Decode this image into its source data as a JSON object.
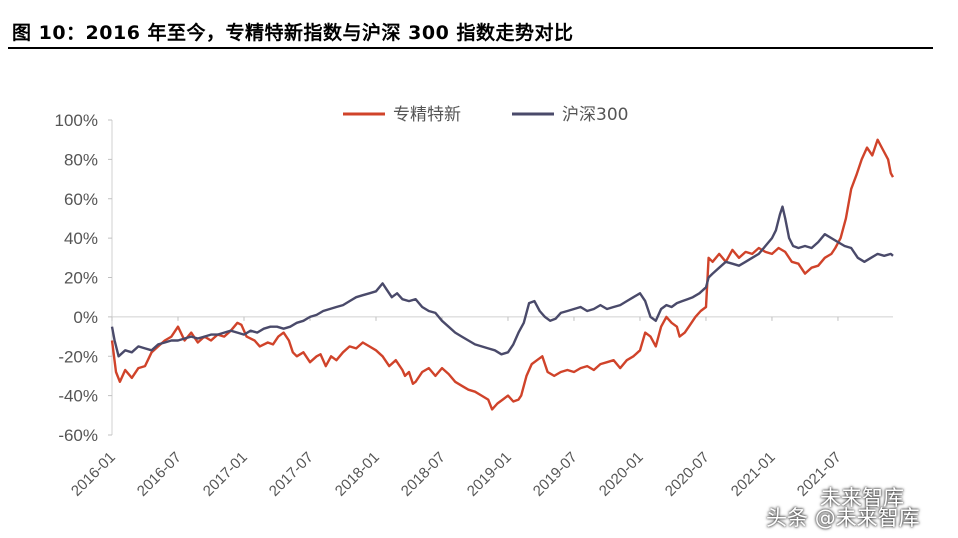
{
  "title": "图 10：2016 年至今，专精特新指数与沪深 300 指数走势对比",
  "watermark": {
    "wechat": "未来智库",
    "platform_prefix": "头条",
    "account": "@未来智库"
  },
  "chart_data": {
    "type": "line",
    "title": "",
    "xlabel": "",
    "ylabel": "",
    "ylim": [
      -60,
      100
    ],
    "y_ticks": [
      100,
      80,
      60,
      40,
      20,
      0,
      -20,
      -40,
      -60
    ],
    "y_tick_labels": [
      "100%",
      "80%",
      "60%",
      "40%",
      "20%",
      "0%",
      "-20%",
      "-40%",
      "-60%"
    ],
    "x_range": [
      2016.0,
      2021.917
    ],
    "x_ticks": [
      2016.0,
      2016.5,
      2017.0,
      2017.5,
      2018.0,
      2018.5,
      2019.0,
      2019.5,
      2020.0,
      2020.5,
      2021.0,
      2021.5
    ],
    "x_tick_labels": [
      "2016-01",
      "2016-07",
      "2017-01",
      "2017-07",
      "2018-01",
      "2018-07",
      "2019-01",
      "2019-07",
      "2020-01",
      "2020-07",
      "2021-01",
      "2021-07"
    ],
    "legend_position": "top-center",
    "series": [
      {
        "name": "专精特新",
        "color": "#d0432a",
        "points": [
          [
            2016.0,
            -12
          ],
          [
            2016.03,
            -28
          ],
          [
            2016.06,
            -33
          ],
          [
            2016.1,
            -27
          ],
          [
            2016.15,
            -31
          ],
          [
            2016.2,
            -26
          ],
          [
            2016.25,
            -25
          ],
          [
            2016.3,
            -18
          ],
          [
            2016.35,
            -15
          ],
          [
            2016.4,
            -12
          ],
          [
            2016.45,
            -10
          ],
          [
            2016.5,
            -5
          ],
          [
            2016.55,
            -12
          ],
          [
            2016.6,
            -8
          ],
          [
            2016.65,
            -13
          ],
          [
            2016.7,
            -10
          ],
          [
            2016.75,
            -12
          ],
          [
            2016.8,
            -9
          ],
          [
            2016.85,
            -10
          ],
          [
            2016.9,
            -7
          ],
          [
            2016.95,
            -3
          ],
          [
            2016.98,
            -4
          ],
          [
            2017.02,
            -10
          ],
          [
            2017.08,
            -12
          ],
          [
            2017.12,
            -15
          ],
          [
            2017.18,
            -13
          ],
          [
            2017.22,
            -14
          ],
          [
            2017.26,
            -10
          ],
          [
            2017.3,
            -8
          ],
          [
            2017.34,
            -12
          ],
          [
            2017.37,
            -18
          ],
          [
            2017.4,
            -20
          ],
          [
            2017.45,
            -18
          ],
          [
            2017.5,
            -23
          ],
          [
            2017.55,
            -20
          ],
          [
            2017.58,
            -19
          ],
          [
            2017.62,
            -25
          ],
          [
            2017.66,
            -20
          ],
          [
            2017.7,
            -22
          ],
          [
            2017.75,
            -18
          ],
          [
            2017.8,
            -15
          ],
          [
            2017.85,
            -16
          ],
          [
            2017.9,
            -13
          ],
          [
            2017.95,
            -15
          ],
          [
            2018.0,
            -17
          ],
          [
            2018.05,
            -20
          ],
          [
            2018.1,
            -25
          ],
          [
            2018.15,
            -22
          ],
          [
            2018.2,
            -27
          ],
          [
            2018.22,
            -30
          ],
          [
            2018.25,
            -28
          ],
          [
            2018.28,
            -34
          ],
          [
            2018.3,
            -33
          ],
          [
            2018.35,
            -28
          ],
          [
            2018.4,
            -26
          ],
          [
            2018.45,
            -30
          ],
          [
            2018.5,
            -26
          ],
          [
            2018.55,
            -29
          ],
          [
            2018.6,
            -33
          ],
          [
            2018.65,
            -35
          ],
          [
            2018.7,
            -37
          ],
          [
            2018.75,
            -38
          ],
          [
            2018.8,
            -40
          ],
          [
            2018.85,
            -42
          ],
          [
            2018.88,
            -47
          ],
          [
            2018.92,
            -44
          ],
          [
            2018.96,
            -42
          ],
          [
            2019.0,
            -40
          ],
          [
            2019.04,
            -43
          ],
          [
            2019.08,
            -42
          ],
          [
            2019.1,
            -40
          ],
          [
            2019.14,
            -30
          ],
          [
            2019.18,
            -24
          ],
          [
            2019.22,
            -22
          ],
          [
            2019.26,
            -20
          ],
          [
            2019.3,
            -28
          ],
          [
            2019.35,
            -30
          ],
          [
            2019.4,
            -28
          ],
          [
            2019.45,
            -27
          ],
          [
            2019.5,
            -28
          ],
          [
            2019.55,
            -26
          ],
          [
            2019.6,
            -25
          ],
          [
            2019.65,
            -27
          ],
          [
            2019.7,
            -24
          ],
          [
            2019.75,
            -23
          ],
          [
            2019.8,
            -22
          ],
          [
            2019.85,
            -26
          ],
          [
            2019.9,
            -22
          ],
          [
            2019.95,
            -20
          ],
          [
            2020.0,
            -17
          ],
          [
            2020.04,
            -8
          ],
          [
            2020.08,
            -10
          ],
          [
            2020.12,
            -15
          ],
          [
            2020.16,
            -5
          ],
          [
            2020.2,
            0
          ],
          [
            2020.24,
            -3
          ],
          [
            2020.28,
            -5
          ],
          [
            2020.3,
            -10
          ],
          [
            2020.34,
            -8
          ],
          [
            2020.38,
            -4
          ],
          [
            2020.42,
            0
          ],
          [
            2020.46,
            3
          ],
          [
            2020.5,
            5
          ],
          [
            2020.52,
            30
          ],
          [
            2020.55,
            28
          ],
          [
            2020.6,
            32
          ],
          [
            2020.65,
            28
          ],
          [
            2020.7,
            34
          ],
          [
            2020.75,
            30
          ],
          [
            2020.8,
            33
          ],
          [
            2020.85,
            32
          ],
          [
            2020.9,
            35
          ],
          [
            2020.95,
            33
          ],
          [
            2021.0,
            32
          ],
          [
            2021.05,
            35
          ],
          [
            2021.1,
            33
          ],
          [
            2021.15,
            28
          ],
          [
            2021.2,
            27
          ],
          [
            2021.25,
            22
          ],
          [
            2021.3,
            25
          ],
          [
            2021.35,
            26
          ],
          [
            2021.4,
            30
          ],
          [
            2021.45,
            32
          ],
          [
            2021.48,
            35
          ],
          [
            2021.52,
            40
          ],
          [
            2021.56,
            50
          ],
          [
            2021.6,
            65
          ],
          [
            2021.64,
            72
          ],
          [
            2021.68,
            80
          ],
          [
            2021.72,
            86
          ],
          [
            2021.76,
            82
          ],
          [
            2021.8,
            90
          ],
          [
            2021.84,
            85
          ],
          [
            2021.88,
            80
          ],
          [
            2021.9,
            73
          ],
          [
            2021.917,
            71
          ]
        ]
      },
      {
        "name": "沪深300",
        "color": "#4a4a6a",
        "points": [
          [
            2016.0,
            -5
          ],
          [
            2016.02,
            -12
          ],
          [
            2016.05,
            -20
          ],
          [
            2016.1,
            -17
          ],
          [
            2016.15,
            -18
          ],
          [
            2016.2,
            -15
          ],
          [
            2016.25,
            -16
          ],
          [
            2016.3,
            -17
          ],
          [
            2016.35,
            -14
          ],
          [
            2016.4,
            -13
          ],
          [
            2016.45,
            -12
          ],
          [
            2016.5,
            -12
          ],
          [
            2016.55,
            -11
          ],
          [
            2016.6,
            -10
          ],
          [
            2016.65,
            -11
          ],
          [
            2016.7,
            -10
          ],
          [
            2016.75,
            -9
          ],
          [
            2016.8,
            -9
          ],
          [
            2016.85,
            -8
          ],
          [
            2016.9,
            -7
          ],
          [
            2016.95,
            -8
          ],
          [
            2017.0,
            -9
          ],
          [
            2017.05,
            -7
          ],
          [
            2017.1,
            -8
          ],
          [
            2017.15,
            -6
          ],
          [
            2017.2,
            -5
          ],
          [
            2017.25,
            -5
          ],
          [
            2017.3,
            -6
          ],
          [
            2017.35,
            -5
          ],
          [
            2017.4,
            -3
          ],
          [
            2017.45,
            -2
          ],
          [
            2017.5,
            0
          ],
          [
            2017.55,
            1
          ],
          [
            2017.6,
            3
          ],
          [
            2017.65,
            4
          ],
          [
            2017.7,
            5
          ],
          [
            2017.75,
            6
          ],
          [
            2017.8,
            8
          ],
          [
            2017.85,
            10
          ],
          [
            2017.9,
            11
          ],
          [
            2017.95,
            12
          ],
          [
            2018.0,
            13
          ],
          [
            2018.05,
            17
          ],
          [
            2018.08,
            14
          ],
          [
            2018.12,
            10
          ],
          [
            2018.16,
            12
          ],
          [
            2018.2,
            9
          ],
          [
            2018.25,
            8
          ],
          [
            2018.3,
            9
          ],
          [
            2018.35,
            5
          ],
          [
            2018.4,
            3
          ],
          [
            2018.45,
            2
          ],
          [
            2018.5,
            -2
          ],
          [
            2018.55,
            -5
          ],
          [
            2018.6,
            -8
          ],
          [
            2018.65,
            -10
          ],
          [
            2018.7,
            -12
          ],
          [
            2018.75,
            -14
          ],
          [
            2018.8,
            -15
          ],
          [
            2018.85,
            -16
          ],
          [
            2018.9,
            -17
          ],
          [
            2018.95,
            -19
          ],
          [
            2019.0,
            -18
          ],
          [
            2019.04,
            -14
          ],
          [
            2019.08,
            -8
          ],
          [
            2019.12,
            -3
          ],
          [
            2019.16,
            7
          ],
          [
            2019.2,
            8
          ],
          [
            2019.24,
            3
          ],
          [
            2019.28,
            0
          ],
          [
            2019.32,
            -2
          ],
          [
            2019.36,
            -1
          ],
          [
            2019.4,
            2
          ],
          [
            2019.45,
            3
          ],
          [
            2019.5,
            4
          ],
          [
            2019.55,
            5
          ],
          [
            2019.6,
            3
          ],
          [
            2019.65,
            4
          ],
          [
            2019.7,
            6
          ],
          [
            2019.75,
            4
          ],
          [
            2019.8,
            5
          ],
          [
            2019.85,
            6
          ],
          [
            2019.9,
            8
          ],
          [
            2019.95,
            10
          ],
          [
            2020.0,
            12
          ],
          [
            2020.04,
            8
          ],
          [
            2020.08,
            0
          ],
          [
            2020.12,
            -2
          ],
          [
            2020.16,
            4
          ],
          [
            2020.2,
            6
          ],
          [
            2020.24,
            5
          ],
          [
            2020.28,
            7
          ],
          [
            2020.32,
            8
          ],
          [
            2020.36,
            9
          ],
          [
            2020.4,
            10
          ],
          [
            2020.45,
            12
          ],
          [
            2020.5,
            15
          ],
          [
            2020.52,
            20
          ],
          [
            2020.55,
            22
          ],
          [
            2020.6,
            25
          ],
          [
            2020.65,
            28
          ],
          [
            2020.7,
            27
          ],
          [
            2020.75,
            26
          ],
          [
            2020.8,
            28
          ],
          [
            2020.85,
            30
          ],
          [
            2020.9,
            32
          ],
          [
            2020.95,
            36
          ],
          [
            2021.0,
            40
          ],
          [
            2021.03,
            44
          ],
          [
            2021.06,
            52
          ],
          [
            2021.08,
            56
          ],
          [
            2021.1,
            50
          ],
          [
            2021.13,
            40
          ],
          [
            2021.16,
            36
          ],
          [
            2021.2,
            35
          ],
          [
            2021.25,
            36
          ],
          [
            2021.3,
            35
          ],
          [
            2021.35,
            38
          ],
          [
            2021.4,
            42
          ],
          [
            2021.45,
            40
          ],
          [
            2021.5,
            38
          ],
          [
            2021.55,
            36
          ],
          [
            2021.6,
            35
          ],
          [
            2021.65,
            30
          ],
          [
            2021.7,
            28
          ],
          [
            2021.75,
            30
          ],
          [
            2021.8,
            32
          ],
          [
            2021.85,
            31
          ],
          [
            2021.9,
            32
          ],
          [
            2021.917,
            31
          ]
        ]
      }
    ]
  }
}
